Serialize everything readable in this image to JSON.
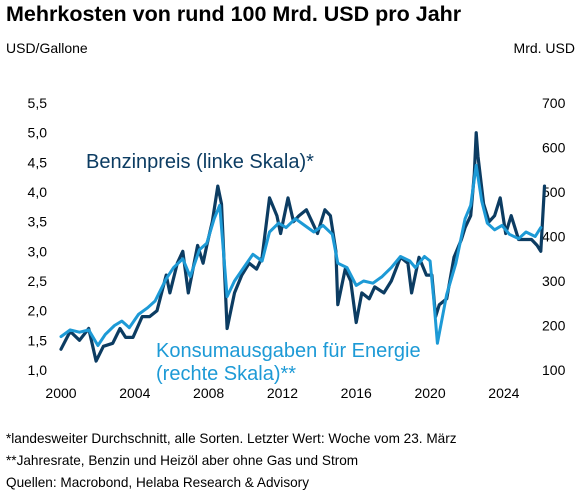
{
  "title": "Mehrkosten von rund 100 Mrd. USD pro Jahr",
  "colors": {
    "gasoline": "#0c3c62",
    "spending": "#1d9ad6",
    "text": "#000000"
  },
  "footnotes": [
    "*landesweiter Durchschnitt, alle Sorten. Letzter Wert: Woche vom 23. März",
    "**Jahresrate, Benzin und Heizöl aber ohne Gas und Strom",
    "Quellen: Macrobond, Helaba Research & Advisory"
  ],
  "chart_data": {
    "type": "line",
    "title": "Mehrkosten von rund 100 Mrd. USD pro Jahr",
    "y_left_label": "USD/Gallone",
    "y_right_label": "Mrd. USD",
    "x_ticks": [
      "2000",
      "2004",
      "2008",
      "2012",
      "2016",
      "2020",
      "2024"
    ],
    "y_left_ticks": [
      "1,0",
      "1,5",
      "2,0",
      "2,5",
      "3,0",
      "3,5",
      "4,0",
      "4,5",
      "5,0",
      "5,5"
    ],
    "y_right_ticks": [
      "100",
      "200",
      "300",
      "400",
      "500",
      "600",
      "700"
    ],
    "xlim": [
      2000,
      2026.5
    ],
    "ylim_left": [
      1.0,
      5.5
    ],
    "ylim_right": [
      100,
      700
    ],
    "grid": false,
    "series": [
      {
        "name": "Benzinpreis (linke Skala)*",
        "axis": "left",
        "x": [
          2000,
          2000.5,
          2001,
          2001.5,
          2001.9,
          2002.3,
          2002.8,
          2003.2,
          2003.5,
          2003.9,
          2004.4,
          2004.8,
          2005.2,
          2005.7,
          2005.9,
          2006.3,
          2006.6,
          2006.9,
          2007.4,
          2007.7,
          2007.9,
          2008.2,
          2008.5,
          2008.7,
          2009.0,
          2009.4,
          2009.8,
          2010.2,
          2010.6,
          2010.9,
          2011.3,
          2011.7,
          2011.9,
          2012.3,
          2012.6,
          2012.9,
          2013.3,
          2013.6,
          2013.9,
          2014.3,
          2014.6,
          2014.9,
          2015.0,
          2015.4,
          2015.7,
          2016.0,
          2016.3,
          2016.7,
          2017.0,
          2017.5,
          2017.9,
          2018.4,
          2018.8,
          2019.0,
          2019.4,
          2019.8,
          2020.1,
          2020.3,
          2020.5,
          2020.9,
          2021.3,
          2021.7,
          2021.9,
          2022.2,
          2022.4,
          2022.5,
          2022.6,
          2022.9,
          2023.2,
          2023.5,
          2023.8,
          2024.1,
          2024.4,
          2024.8,
          2025.1,
          2025.5,
          2025.8,
          2026.0,
          2026.2
        ],
        "values": [
          1.35,
          1.65,
          1.5,
          1.7,
          1.15,
          1.4,
          1.45,
          1.7,
          1.55,
          1.55,
          1.9,
          1.9,
          2.0,
          2.6,
          2.3,
          2.8,
          3.0,
          2.3,
          3.1,
          2.8,
          3.1,
          3.5,
          4.1,
          3.8,
          1.7,
          2.3,
          2.6,
          2.8,
          2.7,
          2.9,
          3.9,
          3.6,
          3.3,
          3.9,
          3.5,
          3.6,
          3.7,
          3.5,
          3.3,
          3.7,
          3.6,
          3.0,
          2.1,
          2.7,
          2.5,
          1.8,
          2.3,
          2.2,
          2.4,
          2.3,
          2.5,
          2.9,
          2.8,
          2.3,
          2.9,
          2.6,
          2.6,
          1.9,
          2.1,
          2.2,
          2.9,
          3.2,
          3.4,
          3.6,
          4.3,
          5.0,
          4.6,
          3.8,
          3.5,
          3.6,
          3.9,
          3.3,
          3.6,
          3.2,
          3.2,
          3.2,
          3.1,
          3.0,
          4.1
        ]
      },
      {
        "name": "Konsumausgaben für Energie (rechte Skala)**",
        "axis": "right",
        "x": [
          2000,
          2000.5,
          2001,
          2001.5,
          2002.0,
          2002.4,
          2002.9,
          2003.3,
          2003.7,
          2004.2,
          2004.7,
          2005.1,
          2005.7,
          2006.1,
          2006.6,
          2007.0,
          2007.5,
          2007.9,
          2008.3,
          2008.6,
          2009.0,
          2009.4,
          2009.9,
          2010.4,
          2010.9,
          2011.3,
          2011.8,
          2012.2,
          2012.7,
          2013.2,
          2013.7,
          2014.2,
          2014.7,
          2015.0,
          2015.5,
          2016.0,
          2016.4,
          2016.9,
          2017.4,
          2017.9,
          2018.4,
          2018.9,
          2019.2,
          2019.7,
          2020.0,
          2020.2,
          2020.4,
          2020.9,
          2021.4,
          2021.9,
          2022.2,
          2022.5,
          2022.8,
          2023.1,
          2023.5,
          2023.9,
          2024.3,
          2024.8,
          2025.2,
          2025.7,
          2026.0
        ],
        "values": [
          175,
          190,
          185,
          190,
          155,
          180,
          200,
          210,
          195,
          225,
          240,
          255,
          305,
          330,
          350,
          310,
          370,
          385,
          440,
          470,
          265,
          300,
          330,
          360,
          345,
          410,
          430,
          420,
          440,
          425,
          410,
          425,
          405,
          340,
          330,
          290,
          300,
          295,
          310,
          330,
          355,
          345,
          330,
          355,
          345,
          260,
          160,
          270,
          340,
          440,
          470,
          560,
          480,
          430,
          415,
          425,
          405,
          395,
          410,
          400,
          420
        ]
      }
    ],
    "annotations": [
      {
        "text": "Benzinpreis (linke Skala)*",
        "color": "#0c3c62"
      },
      {
        "text": "Konsumausgaben für Energie",
        "color": "#1d9ad6"
      },
      {
        "text": "(rechte Skala)**",
        "color": "#1d9ad6"
      }
    ]
  }
}
